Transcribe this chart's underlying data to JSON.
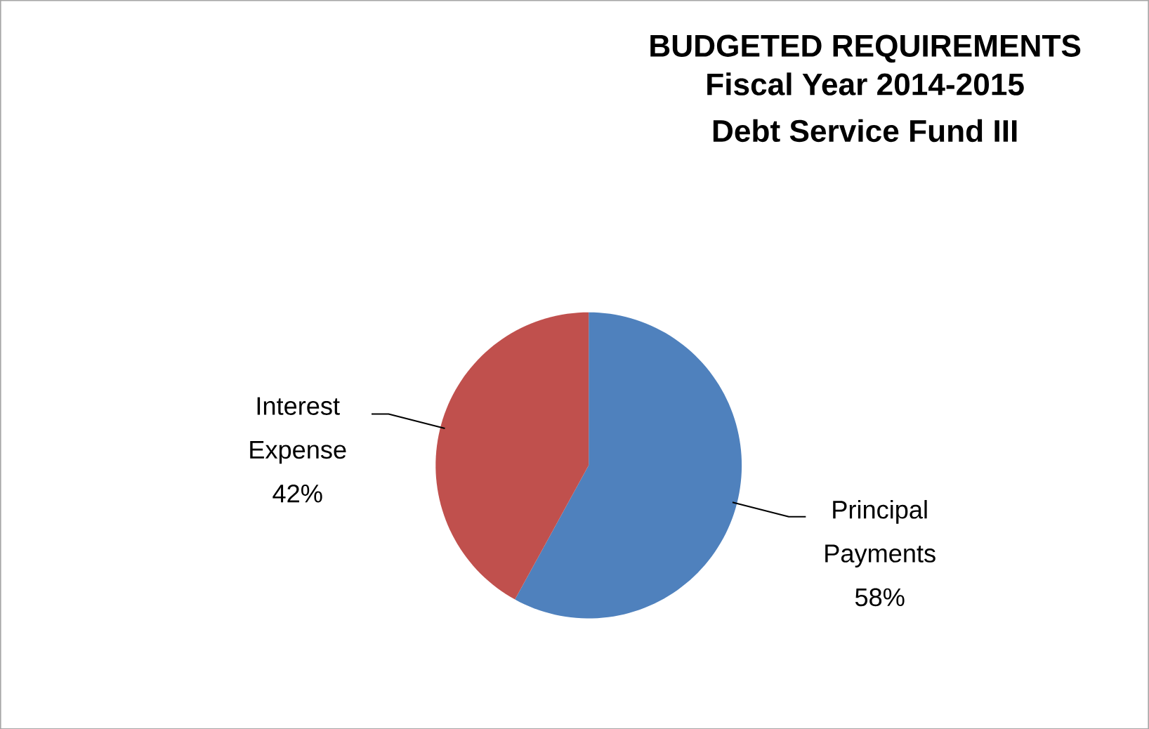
{
  "chart_data": {
    "type": "pie",
    "title": "BUDGETED REQUIREMENTS",
    "subtitle": "Fiscal Year 2014-2015 Debt Service Fund III",
    "categories": [
      "Principal Payments",
      "Interest Expense"
    ],
    "values": [
      58,
      42
    ],
    "value_labels": [
      "58%",
      "42%"
    ],
    "colors": [
      "#4f81bd",
      "#c0504d"
    ]
  }
}
